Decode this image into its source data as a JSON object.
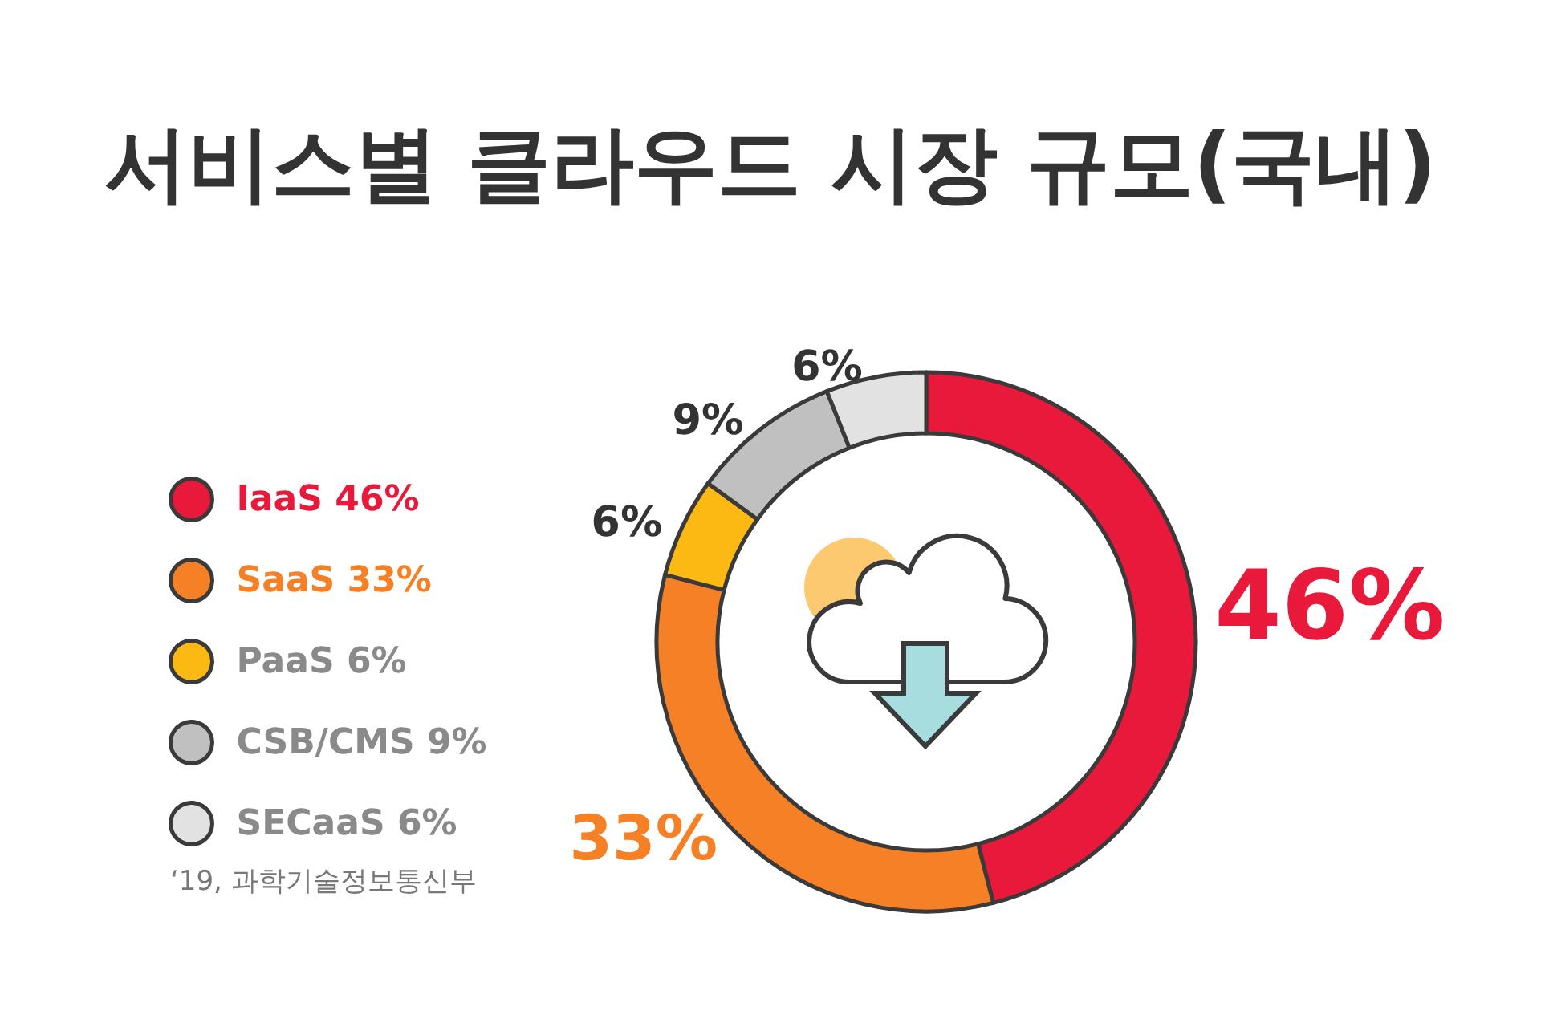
{
  "chart_data": {
    "type": "donut",
    "title": "서비스별 클라우드 시장 규모(국내)",
    "categories": [
      "IaaS",
      "SaaS",
      "PaaS",
      "CSB/CMS",
      "SECaaS"
    ],
    "values": [
      46,
      33,
      6,
      9,
      6
    ],
    "colors": [
      "#e8193a",
      "#f58025",
      "#fdb913",
      "#c0c0c0",
      "#e2e2e2"
    ],
    "value_labels": [
      "46%",
      "33%",
      "6%",
      "9%",
      "6%"
    ],
    "legend": "left",
    "annotations": [
      "‘19, 과학기술정보통신부"
    ]
  }
}
